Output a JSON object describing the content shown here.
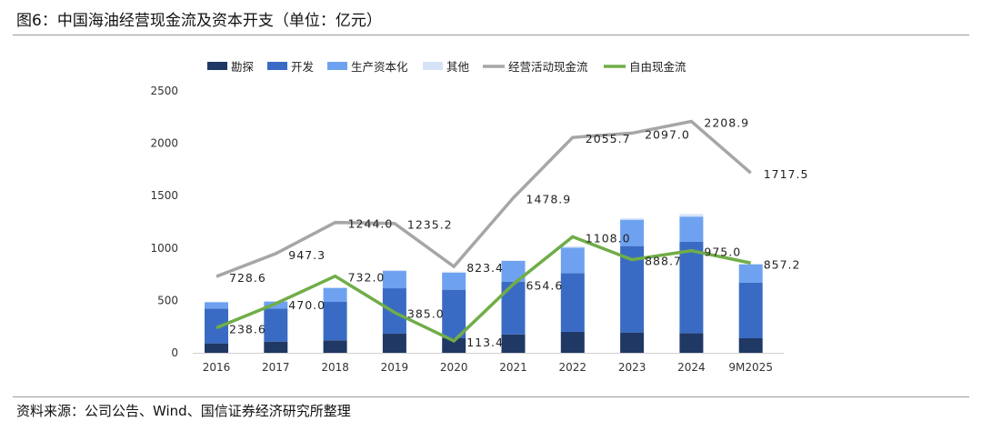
{
  "title": "图6：中国海油经营现金流及资本开支（单位：亿元）",
  "source": "资料来源：公司公告、Wind、国信证券经济研究所整理",
  "chart_data": {
    "type": "bar",
    "stacked": true,
    "categories": [
      "2016",
      "2017",
      "2018",
      "2019",
      "2020",
      "2021",
      "2022",
      "2023",
      "2024",
      "9M2025"
    ],
    "ylim": [
      0,
      2500
    ],
    "yticks": [
      0,
      500,
      1000,
      1500,
      2000,
      2500
    ],
    "ytick_labels": [
      "0",
      "500",
      "1000",
      "1500",
      "2000",
      "2500"
    ],
    "grid": false,
    "legend_position": "top",
    "series": [
      {
        "name": "勘探",
        "kind": "bar",
        "color": "#1f3864",
        "values": [
          90,
          107,
          119,
          182,
          142,
          176,
          200,
          194,
          188,
          139
        ]
      },
      {
        "name": "开发",
        "kind": "bar",
        "color": "#3a6bc4",
        "values": [
          333,
          316,
          370,
          434,
          460,
          501,
          561,
          825,
          871,
          532
        ]
      },
      {
        "name": "生产资本化",
        "kind": "bar",
        "color": "#6ea2f0",
        "values": [
          60,
          66,
          130,
          165,
          162,
          200,
          243,
          251,
          241,
          174
        ]
      },
      {
        "name": "其他",
        "kind": "bar",
        "color": "#d6e3f7",
        "values": [
          5,
          5,
          5,
          9,
          11,
          5,
          12,
          15,
          25,
          3
        ]
      },
      {
        "name": "经营活动现金流",
        "kind": "line",
        "color": "#a6a6a6",
        "values": [
          728.6,
          947.3,
          1244.0,
          1235.2,
          823.4,
          1478.9,
          2055.7,
          2097.0,
          2208.9,
          1717.5
        ],
        "labels": [
          "728.6",
          "947.3",
          "1244.0",
          "1235.2",
          "823.4",
          "1478.9",
          "2055.7",
          "2097.0",
          "2208.9",
          "1717.5"
        ]
      },
      {
        "name": "自由现金流",
        "kind": "line",
        "color": "#70ad47",
        "values": [
          238.6,
          470.0,
          732.0,
          385.0,
          113.4,
          654.6,
          1108.0,
          888.7,
          975.0,
          857.2
        ],
        "labels": [
          "238.6",
          "470.0",
          "732.0",
          "385.0",
          "113.4",
          "654.6",
          "1108.0",
          "888.7",
          "975.0",
          "857.2"
        ]
      }
    ]
  }
}
